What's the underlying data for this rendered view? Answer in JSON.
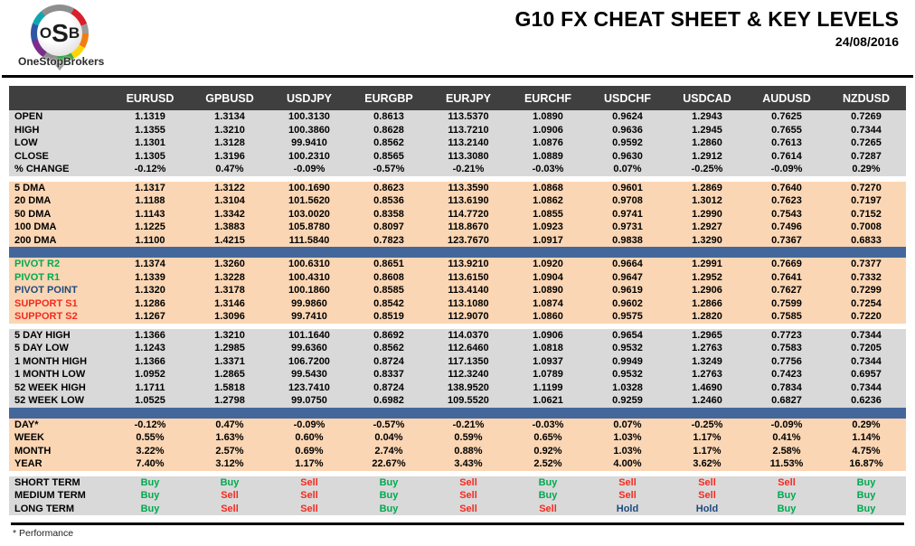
{
  "header": {
    "logo": {
      "o": "O",
      "s": "S",
      "b": "B",
      "brand": "OneStopBrokers"
    },
    "title": "G10 FX CHEAT SHEET & KEY LEVELS",
    "date": "24/08/2016"
  },
  "colors": {
    "header_bg": "#3F3F3F",
    "band_gray": "#D9D9D9",
    "band_peach": "#FBD6B4",
    "divider_blue": "#44679B",
    "green": "#00A950",
    "red": "#F42A20",
    "navy": "#1F497D"
  },
  "table": {
    "corner": "",
    "columns": [
      "EURUSD",
      "GPBUSD",
      "USDJPY",
      "EURGBP",
      "EURJPY",
      "EURCHF",
      "USDCHF",
      "USDCAD",
      "AUDUSD",
      "NZDUSD"
    ],
    "sections": [
      {
        "type": "rows",
        "style": "gray",
        "rows": [
          {
            "label": "OPEN",
            "values": [
              "1.1319",
              "1.3134",
              "100.3130",
              "0.8613",
              "113.5370",
              "1.0890",
              "0.9624",
              "1.2943",
              "0.7625",
              "0.7269"
            ]
          },
          {
            "label": "HIGH",
            "values": [
              "1.1355",
              "1.3210",
              "100.3860",
              "0.8628",
              "113.7210",
              "1.0906",
              "0.9636",
              "1.2945",
              "0.7655",
              "0.7344"
            ]
          },
          {
            "label": "LOW",
            "values": [
              "1.1301",
              "1.3128",
              "99.9410",
              "0.8562",
              "113.2140",
              "1.0876",
              "0.9592",
              "1.2860",
              "0.7613",
              "0.7265"
            ]
          },
          {
            "label": "CLOSE",
            "values": [
              "1.1305",
              "1.3196",
              "100.2310",
              "0.8565",
              "113.3080",
              "1.0889",
              "0.9630",
              "1.2912",
              "0.7614",
              "0.7287"
            ]
          },
          {
            "label": "% CHANGE",
            "values": [
              "-0.12%",
              "0.47%",
              "-0.09%",
              "-0.57%",
              "-0.21%",
              "-0.03%",
              "0.07%",
              "-0.25%",
              "-0.09%",
              "0.29%"
            ]
          }
        ]
      },
      {
        "type": "spacer"
      },
      {
        "type": "rows",
        "style": "peach",
        "rows": [
          {
            "label": "5 DMA",
            "values": [
              "1.1317",
              "1.3122",
              "100.1690",
              "0.8623",
              "113.3590",
              "1.0868",
              "0.9601",
              "1.2869",
              "0.7640",
              "0.7270"
            ]
          },
          {
            "label": "20 DMA",
            "values": [
              "1.1188",
              "1.3104",
              "101.5620",
              "0.8536",
              "113.6190",
              "1.0862",
              "0.9708",
              "1.3012",
              "0.7623",
              "0.7197"
            ]
          },
          {
            "label": "50 DMA",
            "values": [
              "1.1143",
              "1.3342",
              "103.0020",
              "0.8358",
              "114.7720",
              "1.0855",
              "0.9741",
              "1.2990",
              "0.7543",
              "0.7152"
            ]
          },
          {
            "label": "100 DMA",
            "values": [
              "1.1225",
              "1.3883",
              "105.8780",
              "0.8097",
              "118.8670",
              "1.0923",
              "0.9731",
              "1.2927",
              "0.7496",
              "0.7008"
            ]
          },
          {
            "label": "200 DMA",
            "values": [
              "1.1100",
              "1.4215",
              "111.5840",
              "0.7823",
              "123.7670",
              "1.0917",
              "0.9838",
              "1.3290",
              "0.7367",
              "0.6833"
            ]
          }
        ]
      },
      {
        "type": "divider"
      },
      {
        "type": "rows",
        "style": "peach",
        "rows": [
          {
            "label": "PIVOT R2",
            "label_color": "green",
            "values": [
              "1.1374",
              "1.3260",
              "100.6310",
              "0.8651",
              "113.9210",
              "1.0920",
              "0.9664",
              "1.2991",
              "0.7669",
              "0.7377"
            ]
          },
          {
            "label": "PIVOT R1",
            "label_color": "green",
            "values": [
              "1.1339",
              "1.3228",
              "100.4310",
              "0.8608",
              "113.6150",
              "1.0904",
              "0.9647",
              "1.2952",
              "0.7641",
              "0.7332"
            ]
          },
          {
            "label": "PIVOT POINT",
            "label_color": "navy",
            "values": [
              "1.1320",
              "1.3178",
              "100.1860",
              "0.8585",
              "113.4140",
              "1.0890",
              "0.9619",
              "1.2906",
              "0.7627",
              "0.7299"
            ]
          },
          {
            "label": "SUPPORT S1",
            "label_color": "red",
            "values": [
              "1.1286",
              "1.3146",
              "99.9860",
              "0.8542",
              "113.1080",
              "1.0874",
              "0.9602",
              "1.2866",
              "0.7599",
              "0.7254"
            ]
          },
          {
            "label": "SUPPORT S2",
            "label_color": "red",
            "values": [
              "1.1267",
              "1.3096",
              "99.7410",
              "0.8519",
              "112.9070",
              "1.0860",
              "0.9575",
              "1.2820",
              "0.7585",
              "0.7220"
            ]
          }
        ]
      },
      {
        "type": "spacer"
      },
      {
        "type": "rows",
        "style": "gray",
        "rows": [
          {
            "label": "5 DAY HIGH",
            "values": [
              "1.1366",
              "1.3210",
              "101.1640",
              "0.8692",
              "114.0370",
              "1.0906",
              "0.9654",
              "1.2965",
              "0.7723",
              "0.7344"
            ]
          },
          {
            "label": "5 DAY LOW",
            "values": [
              "1.1243",
              "1.2985",
              "99.6360",
              "0.8562",
              "112.6460",
              "1.0818",
              "0.9532",
              "1.2763",
              "0.7583",
              "0.7205"
            ]
          },
          {
            "label": "1 MONTH HIGH",
            "values": [
              "1.1366",
              "1.3371",
              "106.7200",
              "0.8724",
              "117.1350",
              "1.0937",
              "0.9949",
              "1.3249",
              "0.7756",
              "0.7344"
            ]
          },
          {
            "label": "1 MONTH LOW",
            "values": [
              "1.0952",
              "1.2865",
              "99.5430",
              "0.8337",
              "112.3240",
              "1.0789",
              "0.9532",
              "1.2763",
              "0.7423",
              "0.6957"
            ]
          },
          {
            "label": "52 WEEK HIGH",
            "values": [
              "1.1711",
              "1.5818",
              "123.7410",
              "0.8724",
              "138.9520",
              "1.1199",
              "1.0328",
              "1.4690",
              "0.7834",
              "0.7344"
            ]
          },
          {
            "label": "52 WEEK LOW",
            "values": [
              "1.0525",
              "1.2798",
              "99.0750",
              "0.6982",
              "109.5520",
              "1.0621",
              "0.9259",
              "1.2460",
              "0.6827",
              "0.6236"
            ]
          }
        ]
      },
      {
        "type": "divider"
      },
      {
        "type": "rows",
        "style": "peach",
        "rows": [
          {
            "label": "DAY*",
            "values": [
              "-0.12%",
              "0.47%",
              "-0.09%",
              "-0.57%",
              "-0.21%",
              "-0.03%",
              "0.07%",
              "-0.25%",
              "-0.09%",
              "0.29%"
            ]
          },
          {
            "label": "WEEK",
            "values": [
              "0.55%",
              "1.63%",
              "0.60%",
              "0.04%",
              "0.59%",
              "0.65%",
              "1.03%",
              "1.17%",
              "0.41%",
              "1.14%"
            ]
          },
          {
            "label": "MONTH",
            "values": [
              "3.22%",
              "2.57%",
              "0.69%",
              "2.74%",
              "0.88%",
              "0.92%",
              "1.03%",
              "1.17%",
              "2.58%",
              "4.75%"
            ]
          },
          {
            "label": "YEAR",
            "values": [
              "7.40%",
              "3.12%",
              "1.17%",
              "22.67%",
              "3.43%",
              "2.52%",
              "4.00%",
              "3.62%",
              "11.53%",
              "16.87%"
            ]
          }
        ]
      },
      {
        "type": "spacer"
      },
      {
        "type": "rows",
        "style": "gray",
        "rows": [
          {
            "label": "SHORT TERM",
            "values": [
              "Buy",
              "Buy",
              "Sell",
              "Buy",
              "Sell",
              "Buy",
              "Sell",
              "Sell",
              "Sell",
              "Buy"
            ]
          },
          {
            "label": "MEDIUM TERM",
            "values": [
              "Buy",
              "Sell",
              "Sell",
              "Buy",
              "Sell",
              "Buy",
              "Sell",
              "Sell",
              "Buy",
              "Buy"
            ]
          },
          {
            "label": "LONG TERM",
            "values": [
              "Buy",
              "Sell",
              "Sell",
              "Buy",
              "Sell",
              "Sell",
              "Hold",
              "Hold",
              "Buy",
              "Buy"
            ]
          }
        ]
      }
    ],
    "signal_colors": {
      "Buy": "green",
      "Sell": "red",
      "Hold": "navy"
    }
  },
  "footer": {
    "note": "* Performance"
  }
}
